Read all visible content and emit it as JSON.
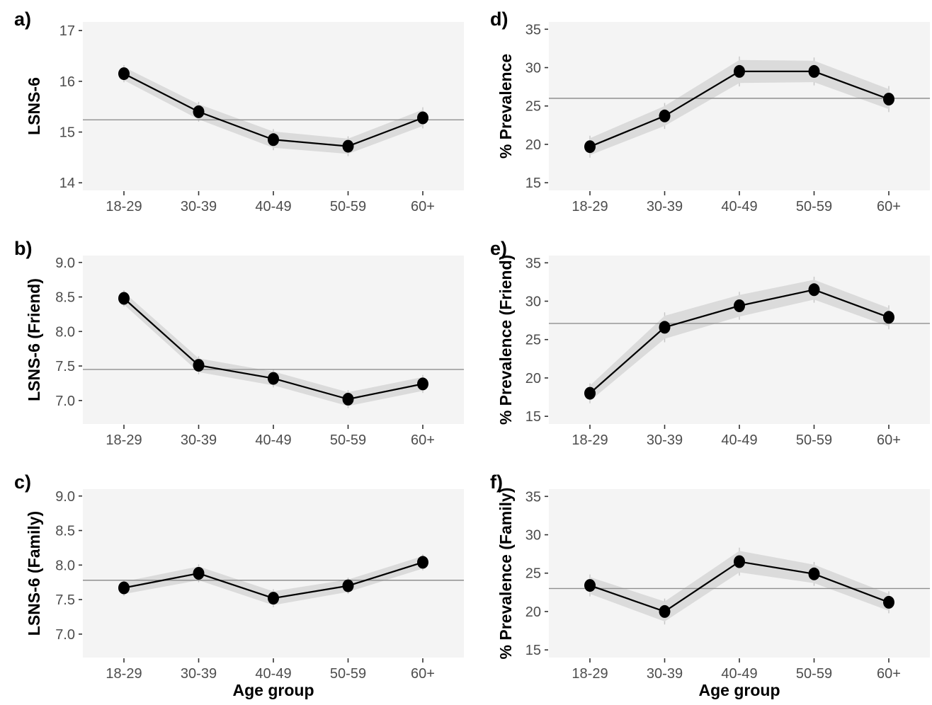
{
  "figure_title": "",
  "colors": {
    "panel_background": "#f4f4f4",
    "ribbon": "#dbdbdb",
    "data_line": "#000000",
    "data_point": "#000000",
    "reference_line": "#8f8f8f",
    "error_bar": "#c6c6c6",
    "tick_mark": "#333333",
    "tick_text": "#4d4d4d",
    "axis_title_text": "#000000"
  },
  "chart_data": {
    "type": "line",
    "layout": "2 columns x 3 rows, panels a-c left (LSNS-6 means), d-f right (% prevalence), shared categorical x axis",
    "categories": [
      "18-29",
      "30-39",
      "40-49",
      "50-59",
      "60+"
    ],
    "xlabel": "Age group",
    "style_notes": "black points with line, gray confidence ribbon, faint vertical error bars, horizontal gray reference line at overall mean, light gray panel background, no gridlines",
    "panels": [
      {
        "id": "a",
        "letter": "a)",
        "row": 1,
        "col": "left",
        "ylabel": "LSNS-6",
        "ylim": [
          13.85,
          17.17
        ],
        "ytick_values": [
          14,
          15,
          16,
          17
        ],
        "ytick_labels": [
          "14",
          "15",
          "16",
          "17"
        ],
        "values": [
          16.15,
          15.4,
          14.85,
          14.72,
          15.28
        ],
        "ci_halfwidth": [
          0.13,
          0.15,
          0.16,
          0.15,
          0.16
        ],
        "reference_line": 15.24,
        "show_xlabel": false
      },
      {
        "id": "d",
        "letter": "d)",
        "row": 1,
        "col": "right",
        "ylabel": "% Prevalence",
        "ylim": [
          14.0,
          35.95
        ],
        "ytick_values": [
          15,
          20,
          25,
          30,
          35
        ],
        "ytick_labels": [
          "15",
          "20",
          "25",
          "30",
          "35"
        ],
        "values": [
          19.7,
          23.7,
          29.5,
          29.5,
          25.9
        ],
        "ci_halfwidth": [
          1.1,
          1.3,
          1.5,
          1.4,
          1.3
        ],
        "reference_line": 26.0,
        "show_xlabel": false
      },
      {
        "id": "b",
        "letter": "b)",
        "row": 2,
        "col": "left",
        "ylabel": "LSNS-6 (Friend)",
        "ylim": [
          6.66,
          9.1
        ],
        "ytick_values": [
          7.0,
          7.5,
          8.0,
          8.5,
          9.0
        ],
        "ytick_labels": [
          "7.0",
          "7.5",
          "8.0",
          "8.5",
          "9.0"
        ],
        "values": [
          8.48,
          7.51,
          7.32,
          7.02,
          7.24
        ],
        "ci_halfwidth": [
          0.09,
          0.1,
          0.1,
          0.1,
          0.1
        ],
        "reference_line": 7.45,
        "show_xlabel": false
      },
      {
        "id": "e",
        "letter": "e)",
        "row": 2,
        "col": "right",
        "ylabel": "% Prevalence (Friend)",
        "ylim": [
          14.0,
          35.95
        ],
        "ytick_values": [
          15,
          20,
          25,
          30,
          35
        ],
        "ytick_labels": [
          "15",
          "20",
          "25",
          "30",
          "35"
        ],
        "values": [
          18.0,
          26.6,
          29.4,
          31.5,
          27.9
        ],
        "ci_halfwidth": [
          1.0,
          1.5,
          1.4,
          1.3,
          1.2
        ],
        "reference_line": 27.1,
        "show_xlabel": false
      },
      {
        "id": "c",
        "letter": "c)",
        "row": 3,
        "col": "left",
        "ylabel": "LSNS-6 (Family)",
        "ylim": [
          6.66,
          9.1
        ],
        "ytick_values": [
          7.0,
          7.5,
          8.0,
          8.5,
          9.0
        ],
        "ytick_labels": [
          "7.0",
          "7.5",
          "8.0",
          "8.5",
          "9.0"
        ],
        "values": [
          7.67,
          7.88,
          7.52,
          7.7,
          8.04
        ],
        "ci_halfwidth": [
          0.09,
          0.1,
          0.1,
          0.09,
          0.09
        ],
        "reference_line": 7.78,
        "show_xlabel": true
      },
      {
        "id": "f",
        "letter": "f)",
        "row": 3,
        "col": "right",
        "ylabel": "% Prevalence (Family)",
        "ylim": [
          14.0,
          35.95
        ],
        "ytick_values": [
          15,
          20,
          25,
          30,
          35
        ],
        "ytick_labels": [
          "15",
          "20",
          "25",
          "30",
          "35"
        ],
        "values": [
          23.4,
          20.0,
          26.5,
          24.9,
          21.2
        ],
        "ci_halfwidth": [
          1.1,
          1.3,
          1.4,
          1.2,
          1.1
        ],
        "reference_line": 23.0,
        "show_xlabel": true
      }
    ]
  }
}
